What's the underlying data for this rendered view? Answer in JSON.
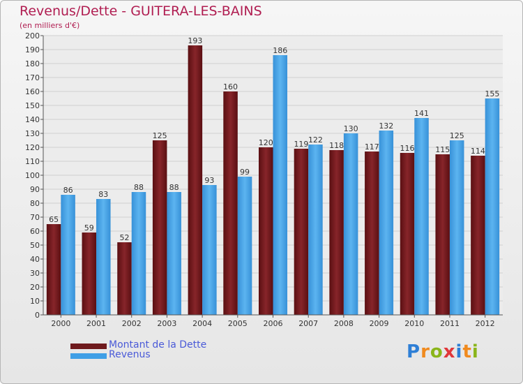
{
  "chart_data": {
    "type": "bar",
    "title": "Revenus/Dette - GUITERA-LES-BAINS",
    "subtitle": "(en milliers d'€)",
    "categories": [
      "2000",
      "2001",
      "2002",
      "2003",
      "2004",
      "2005",
      "2006",
      "2007",
      "2008",
      "2009",
      "2010",
      "2011",
      "2012"
    ],
    "series": [
      {
        "name": "Montant de la Dette",
        "color": "#6e1a1d",
        "values": [
          65,
          59,
          52,
          125,
          193,
          160,
          120,
          119,
          118,
          117,
          116,
          115,
          114
        ]
      },
      {
        "name": "Revenus",
        "color": "#3f9fe6",
        "values": [
          86,
          83,
          88,
          88,
          93,
          99,
          186,
          122,
          130,
          132,
          141,
          125,
          155
        ]
      }
    ],
    "ylim": [
      0,
      200
    ],
    "ytick_step": 10,
    "grid": true,
    "legend_position": "bottom-left"
  },
  "logo": {
    "text": "Proxiti",
    "letter_colors": [
      "#2e7fd6",
      "#f08a1e",
      "#8ab51a",
      "#e0373a",
      "#2e7fd6",
      "#f08a1e",
      "#8ab51a"
    ]
  }
}
